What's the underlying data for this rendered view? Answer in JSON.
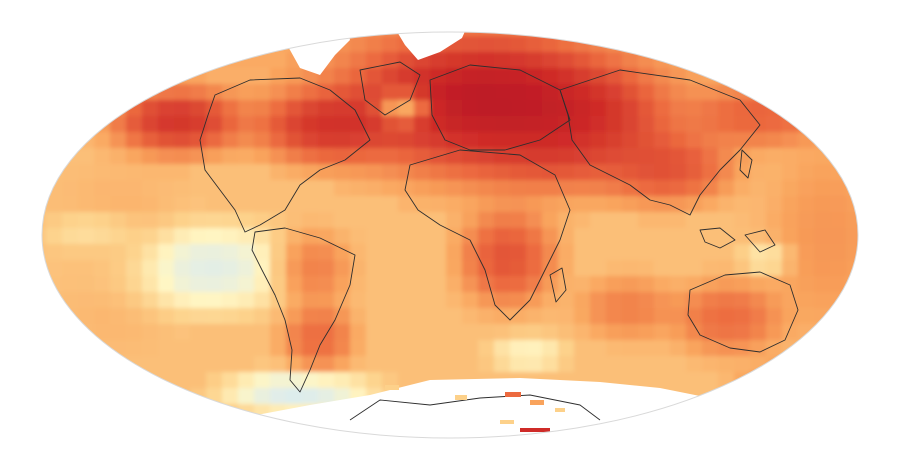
{
  "map": {
    "projection": "elliptical-global",
    "style": "temperature-anomaly-grid",
    "palette": {
      "cold": "#a6cde3",
      "cool": "#d8ebf3",
      "neutral": "#fff6c4",
      "warm_light": "#fdd18a",
      "warm": "#f9a35c",
      "hot": "#ec6a3f",
      "very_hot": "#cf2b28",
      "extreme": "#9e0022",
      "coastline": "#2e2e2e",
      "no_data": "#ffffff"
    }
  }
}
